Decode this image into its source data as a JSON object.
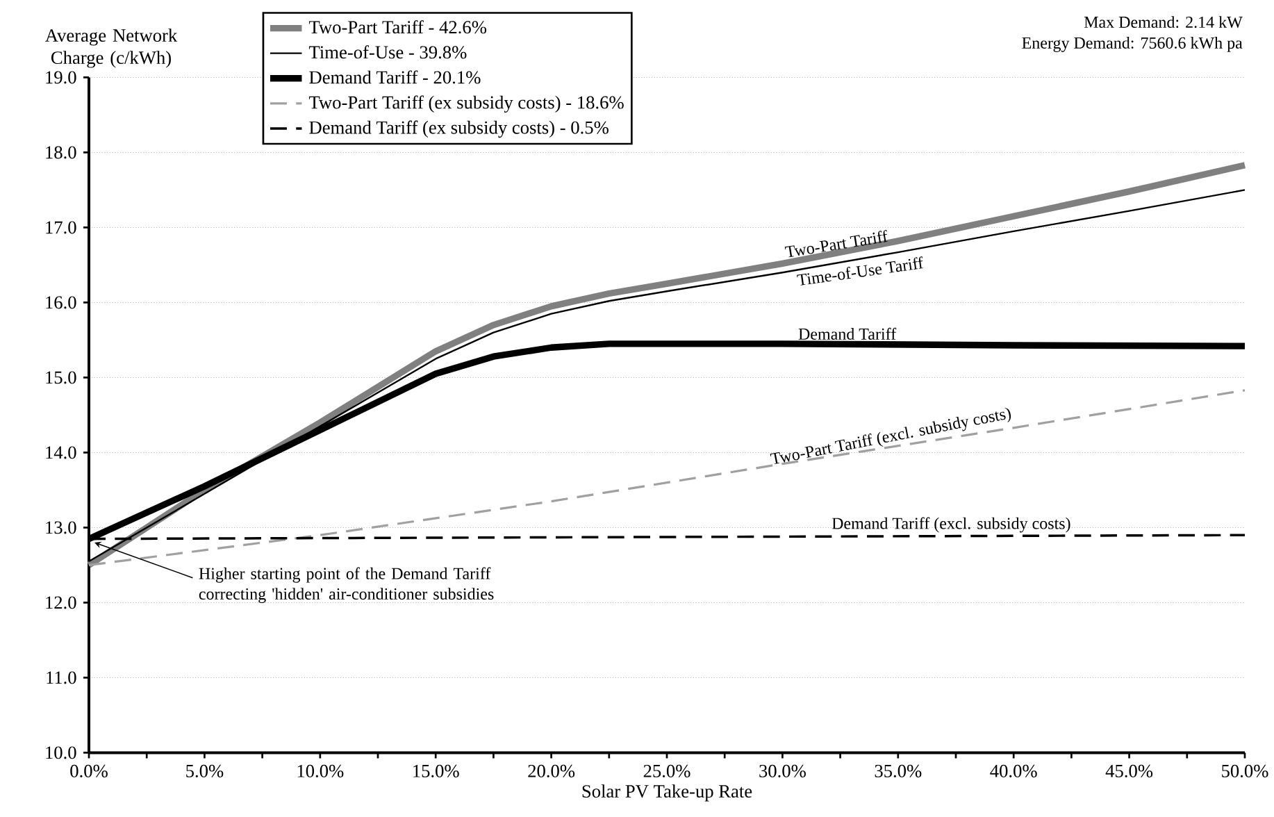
{
  "chart_data": {
    "type": "line",
    "xlabel": "Solar PV Take-up Rate",
    "ylabel": "Average Network Charge (c/kWh)",
    "xlim": [
      0,
      50
    ],
    "ylim": [
      10,
      19
    ],
    "xticks": [
      {
        "value": 0,
        "label": "0.0%"
      },
      {
        "value": 2.5,
        "label": null
      },
      {
        "value": 5,
        "label": "5.0%"
      },
      {
        "value": 7.5,
        "label": null
      },
      {
        "value": 10,
        "label": "10.0%"
      },
      {
        "value": 12.5,
        "label": null
      },
      {
        "value": 15,
        "label": "15.0%"
      },
      {
        "value": 17.5,
        "label": null
      },
      {
        "value": 20,
        "label": "20.0%"
      },
      {
        "value": 22.5,
        "label": null
      },
      {
        "value": 25,
        "label": "25.0%"
      },
      {
        "value": 27.5,
        "label": null
      },
      {
        "value": 30,
        "label": "30.0%"
      },
      {
        "value": 32.5,
        "label": null
      },
      {
        "value": 35,
        "label": "35.0%"
      },
      {
        "value": 37.5,
        "label": null
      },
      {
        "value": 40,
        "label": "40.0%"
      },
      {
        "value": 42.5,
        "label": null
      },
      {
        "value": 45,
        "label": "45.0%"
      },
      {
        "value": 47.5,
        "label": null
      },
      {
        "value": 50,
        "label": "50.0%"
      }
    ],
    "yticks": [
      {
        "value": 10,
        "label": "10.0"
      },
      {
        "value": 11,
        "label": "11.0"
      },
      {
        "value": 12,
        "label": "12.0"
      },
      {
        "value": 13,
        "label": "13.0"
      },
      {
        "value": 14,
        "label": "14.0"
      },
      {
        "value": 15,
        "label": "15.0"
      },
      {
        "value": 16,
        "label": "16.0"
      },
      {
        "value": 17,
        "label": "17.0"
      },
      {
        "value": 18,
        "label": "18.0"
      },
      {
        "value": 19,
        "label": "19.0"
      }
    ],
    "grid": "y",
    "legend": "top left",
    "marker": "none",
    "series": [
      {
        "name": "Two-Part Tariff - 42.6%",
        "color": "#808080",
        "line_style": "solid",
        "x": [
          0,
          5,
          10,
          15,
          17.5,
          20,
          22.5,
          25,
          30,
          35,
          40,
          45,
          50
        ],
        "values": [
          12.5,
          13.5,
          14.4,
          15.35,
          15.7,
          15.95,
          16.12,
          16.25,
          16.52,
          16.82,
          17.15,
          17.48,
          17.83
        ]
      },
      {
        "name": "Time-of-Use - 39.8%",
        "color": "#000000",
        "line_style": "solid",
        "x": [
          0,
          5,
          10,
          15,
          17.5,
          20,
          22.5,
          25,
          30,
          35,
          40,
          45,
          50
        ],
        "values": [
          12.55,
          13.45,
          14.35,
          15.25,
          15.6,
          15.85,
          16.02,
          16.15,
          16.4,
          16.67,
          16.95,
          17.22,
          17.5
        ]
      },
      {
        "name": "Demand Tariff - 20.1%",
        "color": "#000000",
        "line_style": "solid",
        "x": [
          0,
          5,
          10,
          15,
          17.5,
          20,
          22.5,
          30,
          40,
          50
        ],
        "values": [
          12.85,
          13.55,
          14.3,
          15.05,
          15.28,
          15.4,
          15.45,
          15.45,
          15.43,
          15.42
        ]
      },
      {
        "name": "Two-Part Tariff (ex subsidy costs) - 18.6%",
        "color": "#a0a0a0",
        "line_style": "dashed",
        "x": [
          0,
          10,
          20,
          30,
          40,
          50
        ],
        "values": [
          12.5,
          12.9,
          13.35,
          13.85,
          14.33,
          14.83
        ]
      },
      {
        "name": "Demand Tariff (ex subsidy costs) - 0.5%",
        "color": "#000000",
        "line_style": "dashed",
        "x": [
          0,
          50
        ],
        "values": [
          12.85,
          12.9
        ]
      }
    ],
    "annotations": [
      {
        "text": "Two-Part Tariff",
        "x": 32.4,
        "y": 16.65
      },
      {
        "text": "Time-of-Use Tariff",
        "x": 33.3,
        "y": 16.55
      },
      {
        "text": "Demand Tariff",
        "x": 32.8,
        "y": 15.45
      },
      {
        "text": "Two-Part Tariff (excl. subsidy costs)",
        "x": 34.8,
        "y": 14.05
      },
      {
        "text": "Demand Tariff (excl. subsidy costs)",
        "x": 37.3,
        "y": 12.88
      },
      {
        "text": "Higher starting point of the Demand Tariff correcting 'hidden' air-conditioner subsidies",
        "x": 0,
        "y": 12.85
      },
      "Max Demand: 2.14 kW",
      "Energy Demand: 7560.6 kWh pa"
    ]
  }
}
